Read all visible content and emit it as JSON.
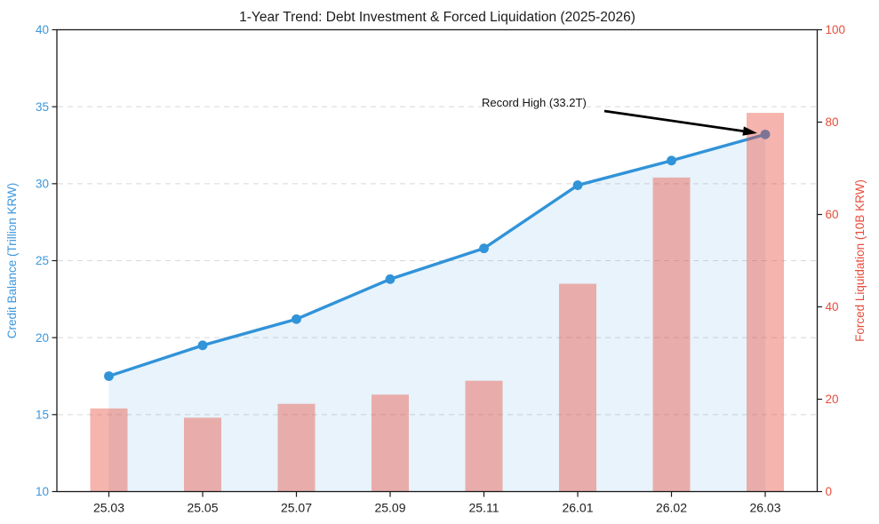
{
  "title": "1-Year Trend: Debt Investment & Forced Liquidation (2025-2026)",
  "left_axis": {
    "label": "Credit Balance (Trillion KRW)",
    "color": "#3b97dc",
    "ticks": [
      10,
      15,
      20,
      25,
      30,
      35,
      40
    ],
    "range": [
      10,
      40
    ]
  },
  "right_axis": {
    "label": "Forced Liquidation (10B KRW)",
    "color": "#e74c3c",
    "ticks": [
      0,
      20,
      40,
      60,
      80,
      100
    ],
    "range": [
      0,
      100
    ]
  },
  "annotation": {
    "text": "Record High (33.2T)",
    "target_category": "26.03",
    "target_value": 33.2
  },
  "chart_data": {
    "type": "line+bar",
    "categories": [
      "25.03",
      "25.05",
      "25.07",
      "25.09",
      "25.11",
      "26.01",
      "26.02",
      "26.03"
    ],
    "series": [
      {
        "name": "Credit Balance (Trillion KRW)",
        "type": "line",
        "axis": "left",
        "color": "#3193d8",
        "area_fill": "rgba(49,147,216,0.11)",
        "marker": "circle",
        "values": [
          17.5,
          19.5,
          21.2,
          23.8,
          25.8,
          29.9,
          31.5,
          33.2
        ]
      },
      {
        "name": "Forced Liquidation (10B KRW)",
        "type": "bar",
        "axis": "right",
        "color": "#e74c3c",
        "opacity": 0.42,
        "values": [
          18,
          16,
          19,
          21,
          24,
          45,
          68,
          82
        ]
      }
    ],
    "title": "1-Year Trend: Debt Investment & Forced Liquidation (2025-2026)",
    "xlabel": "",
    "ylabel_left": "Credit Balance (Trillion KRW)",
    "ylabel_right": "Forced Liquidation (10B KRW)",
    "ylim_left": [
      10,
      40
    ],
    "ylim_right": [
      0,
      100
    ],
    "grid": "horizontal-dashed",
    "legend": "none",
    "grid_color": "#d8d8d8",
    "tick_label_color_x": "#1c1c1c"
  }
}
